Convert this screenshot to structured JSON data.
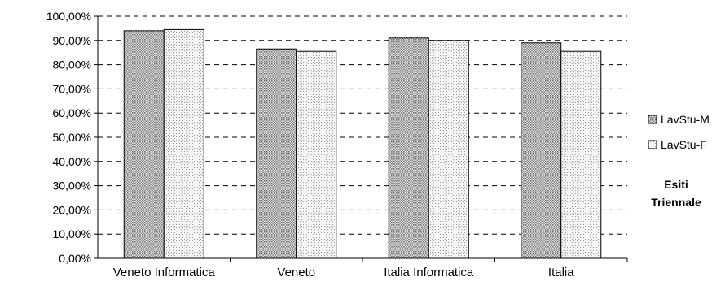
{
  "chart_data": {
    "type": "bar",
    "categories": [
      "Veneto Informatica",
      "Veneto",
      "Italia Informatica",
      "Italia"
    ],
    "series": [
      {
        "name": "LavStu-M",
        "values": [
          94.0,
          86.5,
          91.0,
          89.0
        ],
        "pattern": "dense-dots"
      },
      {
        "name": "LavStu-F",
        "values": [
          94.5,
          85.5,
          90.0,
          85.5
        ],
        "pattern": "sparse-dots"
      }
    ],
    "ylim": [
      0,
      100
    ],
    "ytick_step": 10,
    "ytick_labels": [
      "0,00%",
      "10,00%",
      "20,00%",
      "30,00%",
      "40,00%",
      "50,00%",
      "60,00%",
      "70,00%",
      "80,00%",
      "90,00%",
      "100,00%"
    ],
    "grid": "dashed horizontal",
    "legend_position": "right",
    "side_title_lines": [
      "Esiti",
      "Triennale"
    ],
    "colors": {
      "bar_fill": "#d8d8d8",
      "bar_stroke": "#000000",
      "grid": "#000000"
    }
  }
}
